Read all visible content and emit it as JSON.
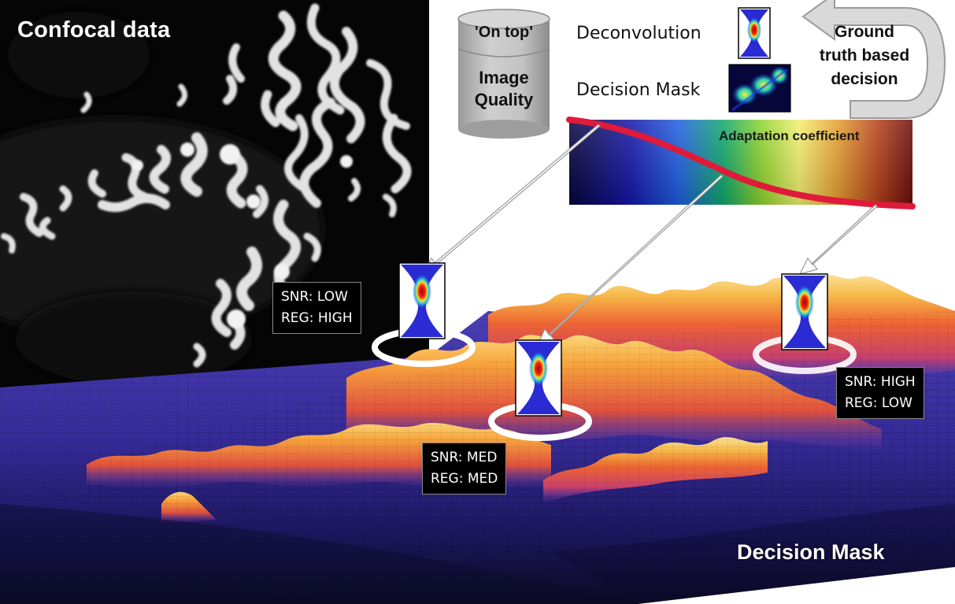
{
  "confocal": {
    "title": "Confocal data"
  },
  "storage": {
    "on_top_label": "'On top'",
    "quality_line1": "Image",
    "quality_line2": "Quality"
  },
  "legend": {
    "deconvolution_label": "Deconvolution",
    "decision_mask_label": "Decision Mask"
  },
  "ground_truth": {
    "line1": "Ground",
    "line2": "truth based",
    "line3": "decision"
  },
  "adaptation": {
    "label": "Adaptation coefficient"
  },
  "annotations": [
    {
      "snr": "SNR: LOW",
      "reg": "REG: HIGH"
    },
    {
      "snr": "SNR: MED",
      "reg": "REG: MED"
    },
    {
      "snr": "SNR: HIGH",
      "reg": "REG: LOW"
    }
  ],
  "surface": {
    "title": "Decision Mask"
  },
  "colors": {
    "surface_low": "#3a2f9e",
    "surface_mid": "#e8483a",
    "surface_high": "#f7d26a",
    "curve": "#e01a3a"
  }
}
